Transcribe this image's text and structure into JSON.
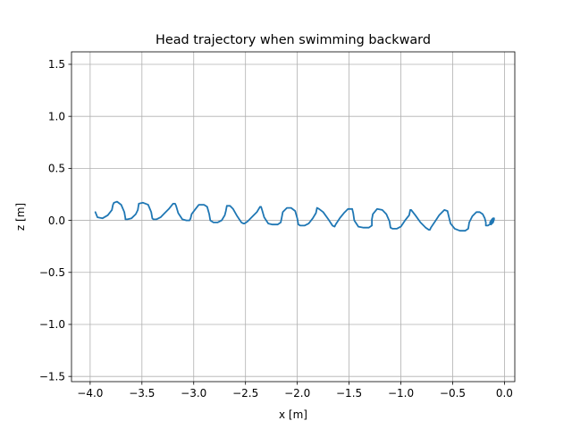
{
  "chart_data": {
    "type": "line",
    "title": "Head trajectory when swimming backward",
    "xlabel": "x [m]",
    "ylabel": "z [m]",
    "xlim": [
      -4.18,
      0.1
    ],
    "ylim": [
      -1.55,
      1.62
    ],
    "xticks": [
      -4.0,
      -3.5,
      -3.0,
      -2.5,
      -2.0,
      -1.5,
      -1.0,
      -0.5,
      0.0
    ],
    "xtick_labels": [
      "−4.0",
      "−3.5",
      "−3.0",
      "−2.5",
      "−2.0",
      "−1.5",
      "−1.0",
      "−0.5",
      "0.0"
    ],
    "yticks": [
      -1.5,
      -1.0,
      -0.5,
      0.0,
      0.5,
      1.0,
      1.5
    ],
    "ytick_labels": [
      "−1.5",
      "−1.0",
      "−0.5",
      "0.0",
      "0.5",
      "1.0",
      "1.5"
    ],
    "grid": true,
    "line_color": "#1f77b4",
    "series": [
      {
        "x": [
          -3.95,
          -3.93,
          -3.88,
          -3.83,
          -3.79,
          -3.78,
          -3.77,
          -3.74,
          -3.7,
          -3.67,
          -3.66,
          -3.66,
          -3.64,
          -3.6,
          -3.56,
          -3.54,
          -3.53,
          -3.49,
          -3.44,
          -3.41,
          -3.4,
          -3.39,
          -3.36,
          -3.32,
          -3.28,
          -3.24,
          -3.2,
          -3.18,
          -3.17,
          -3.15,
          -3.11,
          -3.07,
          -3.04,
          -3.03,
          -3.02,
          -2.99,
          -2.95,
          -2.9,
          -2.87,
          -2.85,
          -2.84,
          -2.81,
          -2.77,
          -2.73,
          -2.7,
          -2.69,
          -2.68,
          -2.65,
          -2.62,
          -2.58,
          -2.54,
          -2.52,
          -2.51,
          -2.48,
          -2.43,
          -2.39,
          -2.36,
          -2.35,
          -2.34,
          -2.32,
          -2.28,
          -2.24,
          -2.19,
          -2.16,
          -2.15,
          -2.14,
          -2.1,
          -2.06,
          -2.02,
          -2.0,
          -1.99,
          -1.97,
          -1.93,
          -1.89,
          -1.85,
          -1.82,
          -1.81,
          -1.79,
          -1.75,
          -1.7,
          -1.66,
          -1.64,
          -1.64,
          -1.63,
          -1.59,
          -1.55,
          -1.51,
          -1.47,
          -1.46,
          -1.45,
          -1.41,
          -1.36,
          -1.31,
          -1.28,
          -1.28,
          -1.27,
          -1.23,
          -1.18,
          -1.14,
          -1.11,
          -1.1,
          -1.08,
          -1.04,
          -1.0,
          -0.96,
          -0.92,
          -0.91,
          -0.9,
          -0.86,
          -0.81,
          -0.76,
          -0.73,
          -0.72,
          -0.71,
          -0.67,
          -0.63,
          -0.58,
          -0.55,
          -0.54,
          -0.52,
          -0.48,
          -0.43,
          -0.38,
          -0.35,
          -0.34,
          -0.31,
          -0.27,
          -0.24,
          -0.21,
          -0.19,
          -0.18,
          -0.18,
          -0.16,
          -0.13,
          -0.11,
          -0.11,
          -0.12,
          -0.14,
          -0.13,
          -0.11,
          -0.1,
          -0.1
        ],
        "y": [
          0.08,
          0.03,
          0.02,
          0.05,
          0.1,
          0.15,
          0.17,
          0.18,
          0.15,
          0.08,
          0.02,
          0.01,
          0.01,
          0.02,
          0.06,
          0.1,
          0.16,
          0.17,
          0.15,
          0.08,
          0.02,
          0.01,
          0.01,
          0.03,
          0.07,
          0.11,
          0.16,
          0.16,
          0.14,
          0.07,
          0.01,
          0.0,
          0.0,
          0.02,
          0.06,
          0.1,
          0.15,
          0.15,
          0.13,
          0.06,
          0.0,
          -0.02,
          -0.02,
          0.0,
          0.05,
          0.09,
          0.14,
          0.14,
          0.11,
          0.04,
          -0.02,
          -0.03,
          -0.03,
          -0.01,
          0.04,
          0.08,
          0.13,
          0.13,
          0.1,
          0.03,
          -0.03,
          -0.04,
          -0.04,
          -0.02,
          0.03,
          0.08,
          0.12,
          0.12,
          0.09,
          0.02,
          -0.04,
          -0.05,
          -0.05,
          -0.03,
          0.02,
          0.07,
          0.12,
          0.11,
          0.08,
          0.01,
          -0.05,
          -0.06,
          -0.06,
          -0.04,
          0.02,
          0.07,
          0.11,
          0.11,
          0.07,
          0.0,
          -0.06,
          -0.07,
          -0.07,
          -0.05,
          0.01,
          0.06,
          0.11,
          0.1,
          0.06,
          -0.01,
          -0.07,
          -0.08,
          -0.08,
          -0.06,
          0.0,
          0.05,
          0.1,
          0.1,
          0.05,
          -0.02,
          -0.07,
          -0.09,
          -0.09,
          -0.07,
          -0.01,
          0.05,
          0.1,
          0.09,
          0.05,
          -0.03,
          -0.08,
          -0.1,
          -0.1,
          -0.08,
          -0.02,
          0.04,
          0.08,
          0.08,
          0.06,
          0.02,
          -0.02,
          -0.05,
          -0.05,
          -0.03,
          0.0,
          0.02,
          0.01,
          -0.02,
          -0.04,
          -0.02,
          0.01,
          0.02
        ]
      }
    ]
  }
}
